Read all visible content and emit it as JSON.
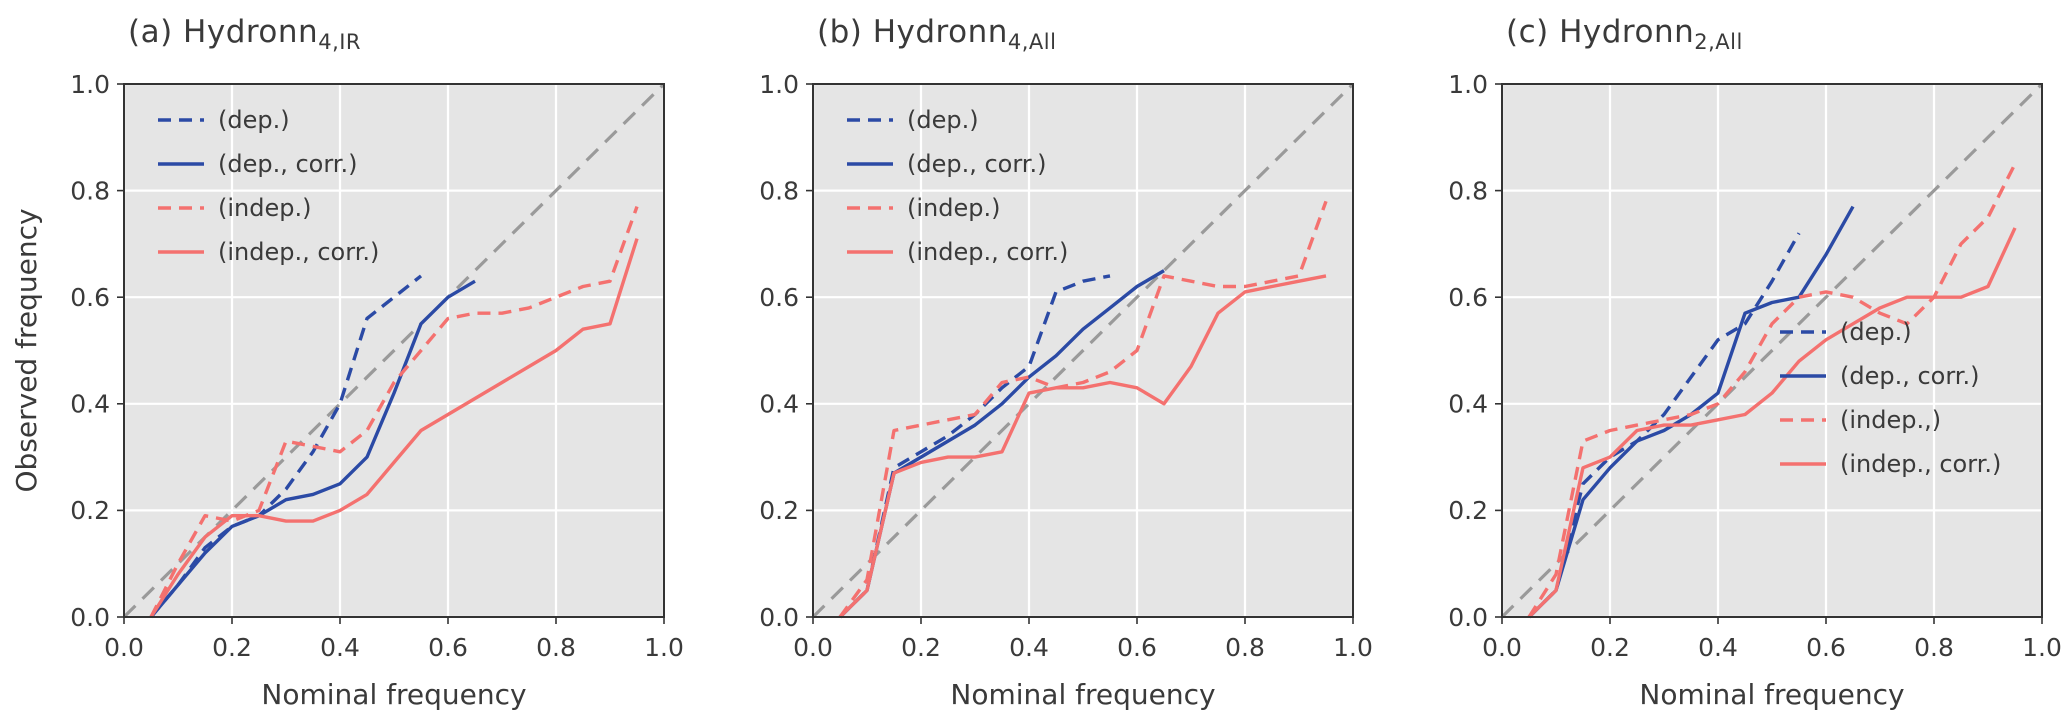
{
  "styles": {
    "plot_bg": "#e5e5e5",
    "grid_color": "#ffffff",
    "frame_color": "#333333",
    "diagonal_color": "#9a9a9a",
    "text_color": "#3a3a3a",
    "blue": "#2b4aa5",
    "red": "#f4716f"
  },
  "chart_data": [
    {
      "type": "line",
      "title_prefix": "(a) Hydronn",
      "title_sub": "4,IR",
      "xlabel": "Nominal frequency",
      "ylabel": "Observed frequency",
      "xlim": [
        0.0,
        1.0
      ],
      "ylim": [
        0.0,
        1.0
      ],
      "xticks": [
        "0.0",
        "0.2",
        "0.4",
        "0.6",
        "0.8",
        "1.0"
      ],
      "yticks": [
        "0.0",
        "0.2",
        "0.4",
        "0.6",
        "0.8",
        "1.0"
      ],
      "grid": true,
      "diagonal": true,
      "legend_position": "top-left",
      "series": [
        {
          "name": "(dep.)",
          "color": "#2b4aa5",
          "dashed": true,
          "x": [
            0.05,
            0.1,
            0.15,
            0.2,
            0.25,
            0.3,
            0.35,
            0.4,
            0.45,
            0.5,
            0.55
          ],
          "y": [
            0.0,
            0.06,
            0.13,
            0.17,
            0.19,
            0.24,
            0.31,
            0.4,
            0.56,
            0.6,
            0.64
          ]
        },
        {
          "name": "(dep., corr.)",
          "color": "#2b4aa5",
          "dashed": false,
          "x": [
            0.05,
            0.1,
            0.15,
            0.2,
            0.25,
            0.3,
            0.35,
            0.4,
            0.45,
            0.5,
            0.55,
            0.6,
            0.65
          ],
          "y": [
            0.0,
            0.06,
            0.12,
            0.17,
            0.19,
            0.22,
            0.23,
            0.25,
            0.3,
            0.42,
            0.55,
            0.6,
            0.63
          ]
        },
        {
          "name": "(indep.)",
          "color": "#f4716f",
          "dashed": true,
          "x": [
            0.05,
            0.1,
            0.15,
            0.2,
            0.25,
            0.3,
            0.35,
            0.4,
            0.45,
            0.5,
            0.55,
            0.6,
            0.65,
            0.7,
            0.75,
            0.8,
            0.85,
            0.9,
            0.95
          ],
          "y": [
            0.0,
            0.1,
            0.19,
            0.18,
            0.2,
            0.33,
            0.32,
            0.31,
            0.35,
            0.44,
            0.5,
            0.56,
            0.57,
            0.57,
            0.58,
            0.6,
            0.62,
            0.63,
            0.77
          ]
        },
        {
          "name": "(indep., corr.)",
          "color": "#f4716f",
          "dashed": false,
          "x": [
            0.05,
            0.1,
            0.15,
            0.2,
            0.25,
            0.3,
            0.35,
            0.4,
            0.45,
            0.5,
            0.55,
            0.6,
            0.65,
            0.7,
            0.75,
            0.8,
            0.85,
            0.9,
            0.95
          ],
          "y": [
            0.0,
            0.08,
            0.15,
            0.19,
            0.19,
            0.18,
            0.18,
            0.2,
            0.23,
            0.29,
            0.35,
            0.38,
            0.41,
            0.44,
            0.47,
            0.5,
            0.54,
            0.55,
            0.71
          ]
        }
      ]
    },
    {
      "type": "line",
      "title_prefix": "(b) Hydronn",
      "title_sub": "4,All",
      "xlabel": "Nominal frequency",
      "ylabel": "",
      "xlim": [
        0.0,
        1.0
      ],
      "ylim": [
        0.0,
        1.0
      ],
      "xticks": [
        "0.0",
        "0.2",
        "0.4",
        "0.6",
        "0.8",
        "1.0"
      ],
      "yticks": [
        "0.0",
        "0.2",
        "0.4",
        "0.6",
        "0.8",
        "1.0"
      ],
      "grid": true,
      "diagonal": true,
      "legend_position": "top-left",
      "series": [
        {
          "name": "(dep.)",
          "color": "#2b4aa5",
          "dashed": true,
          "x": [
            0.05,
            0.1,
            0.15,
            0.2,
            0.25,
            0.3,
            0.35,
            0.4,
            0.45,
            0.5,
            0.55
          ],
          "y": [
            0.0,
            0.05,
            0.28,
            0.31,
            0.34,
            0.38,
            0.43,
            0.47,
            0.61,
            0.63,
            0.64
          ]
        },
        {
          "name": "(dep., corr.)",
          "color": "#2b4aa5",
          "dashed": false,
          "x": [
            0.05,
            0.1,
            0.15,
            0.2,
            0.25,
            0.3,
            0.35,
            0.4,
            0.45,
            0.5,
            0.55,
            0.6,
            0.65
          ],
          "y": [
            0.0,
            0.05,
            0.27,
            0.3,
            0.33,
            0.36,
            0.4,
            0.45,
            0.49,
            0.54,
            0.58,
            0.62,
            0.65
          ]
        },
        {
          "name": "(indep.)",
          "color": "#f4716f",
          "dashed": true,
          "x": [
            0.05,
            0.1,
            0.15,
            0.2,
            0.25,
            0.3,
            0.35,
            0.4,
            0.45,
            0.5,
            0.55,
            0.6,
            0.65,
            0.7,
            0.75,
            0.8,
            0.85,
            0.9,
            0.95
          ],
          "y": [
            0.0,
            0.07,
            0.35,
            0.36,
            0.37,
            0.38,
            0.44,
            0.45,
            0.43,
            0.44,
            0.46,
            0.5,
            0.64,
            0.63,
            0.62,
            0.62,
            0.63,
            0.64,
            0.78
          ]
        },
        {
          "name": "(indep., corr.)",
          "color": "#f4716f",
          "dashed": false,
          "x": [
            0.05,
            0.1,
            0.15,
            0.2,
            0.25,
            0.3,
            0.35,
            0.4,
            0.45,
            0.5,
            0.55,
            0.6,
            0.65,
            0.7,
            0.75,
            0.8,
            0.85,
            0.9,
            0.95
          ],
          "y": [
            0.0,
            0.05,
            0.27,
            0.29,
            0.3,
            0.3,
            0.31,
            0.42,
            0.43,
            0.43,
            0.44,
            0.43,
            0.4,
            0.47,
            0.57,
            0.61,
            0.62,
            0.63,
            0.64
          ]
        }
      ]
    },
    {
      "type": "line",
      "title_prefix": "(c) Hydronn",
      "title_sub": "2,All",
      "xlabel": "Nominal frequency",
      "ylabel": "",
      "xlim": [
        0.0,
        1.0
      ],
      "ylim": [
        0.0,
        1.0
      ],
      "xticks": [
        "0.0",
        "0.2",
        "0.4",
        "0.6",
        "0.8",
        "1.0"
      ],
      "yticks": [
        "0.0",
        "0.2",
        "0.4",
        "0.6",
        "0.8",
        "1.0"
      ],
      "grid": true,
      "diagonal": true,
      "legend_position": "bottom-right",
      "series": [
        {
          "name": "(dep.)",
          "color": "#2b4aa5",
          "dashed": true,
          "x": [
            0.05,
            0.1,
            0.15,
            0.2,
            0.25,
            0.3,
            0.35,
            0.4,
            0.45,
            0.5,
            0.55
          ],
          "y": [
            0.0,
            0.05,
            0.25,
            0.3,
            0.33,
            0.38,
            0.45,
            0.52,
            0.55,
            0.63,
            0.72
          ]
        },
        {
          "name": "(dep., corr.)",
          "color": "#2b4aa5",
          "dashed": false,
          "x": [
            0.05,
            0.1,
            0.15,
            0.2,
            0.25,
            0.3,
            0.35,
            0.4,
            0.45,
            0.5,
            0.55,
            0.6,
            0.65
          ],
          "y": [
            0.0,
            0.05,
            0.22,
            0.28,
            0.33,
            0.35,
            0.38,
            0.42,
            0.57,
            0.59,
            0.6,
            0.68,
            0.77
          ]
        },
        {
          "name": "(indep.,)",
          "color": "#f4716f",
          "dashed": true,
          "x": [
            0.05,
            0.1,
            0.15,
            0.2,
            0.25,
            0.3,
            0.35,
            0.4,
            0.45,
            0.5,
            0.55,
            0.6,
            0.65,
            0.7,
            0.75,
            0.8,
            0.85,
            0.9,
            0.95
          ],
          "y": [
            0.0,
            0.08,
            0.33,
            0.35,
            0.36,
            0.37,
            0.38,
            0.4,
            0.46,
            0.55,
            0.6,
            0.61,
            0.6,
            0.57,
            0.55,
            0.6,
            0.7,
            0.75,
            0.85
          ]
        },
        {
          "name": "(indep., corr.)",
          "color": "#f4716f",
          "dashed": false,
          "x": [
            0.05,
            0.1,
            0.15,
            0.2,
            0.25,
            0.3,
            0.35,
            0.4,
            0.45,
            0.5,
            0.55,
            0.6,
            0.65,
            0.7,
            0.75,
            0.8,
            0.85,
            0.9,
            0.95
          ],
          "y": [
            0.0,
            0.05,
            0.28,
            0.3,
            0.35,
            0.36,
            0.36,
            0.37,
            0.38,
            0.42,
            0.48,
            0.52,
            0.55,
            0.58,
            0.6,
            0.6,
            0.6,
            0.62,
            0.73
          ]
        }
      ]
    }
  ]
}
